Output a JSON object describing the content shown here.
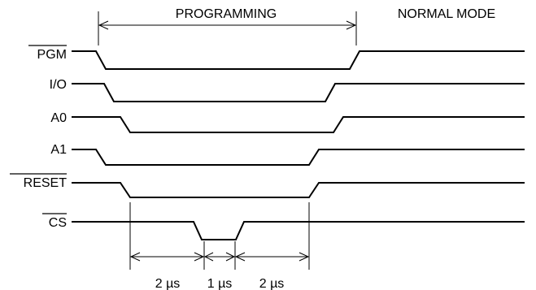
{
  "header": {
    "programming": "PROGRAMMING",
    "normal_mode": "NORMAL MODE"
  },
  "signals": [
    {
      "label": "PGM",
      "overline": true
    },
    {
      "label": "I/O",
      "overline": false
    },
    {
      "label": "A0",
      "overline": false
    },
    {
      "label": "A1",
      "overline": false
    },
    {
      "label": "RESET",
      "overline": true
    },
    {
      "label": "CS",
      "overline": true
    }
  ],
  "timing": {
    "t1": "2 µs",
    "t2": "1 µs",
    "t3": "2 µs"
  }
}
